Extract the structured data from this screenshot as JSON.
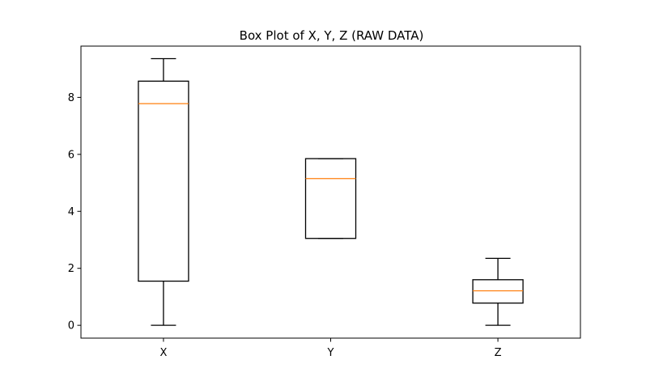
{
  "chart_data": {
    "type": "box",
    "title": "Box Plot of X, Y, Z (RAW DATA)",
    "xlabel": "",
    "ylabel": "",
    "categories": [
      "X",
      "Y",
      "Z"
    ],
    "boxes": [
      {
        "label": "X",
        "whisker_low": 0.0,
        "q1": 1.55,
        "median": 7.78,
        "q3": 8.57,
        "whisker_high": 9.36
      },
      {
        "label": "Y",
        "whisker_low": 3.05,
        "q1": 3.05,
        "median": 5.15,
        "q3": 5.85,
        "whisker_high": 5.85
      },
      {
        "label": "Z",
        "whisker_low": 0.0,
        "q1": 0.78,
        "median": 1.21,
        "q3": 1.6,
        "whisker_high": 2.35
      }
    ],
    "ylim": [
      -0.45,
      9.8
    ],
    "yticks": [
      0,
      2,
      4,
      6,
      8
    ],
    "grid": false,
    "colors": {
      "box": "#000000",
      "median": "#ff7f0e",
      "frame": "#000000"
    }
  }
}
